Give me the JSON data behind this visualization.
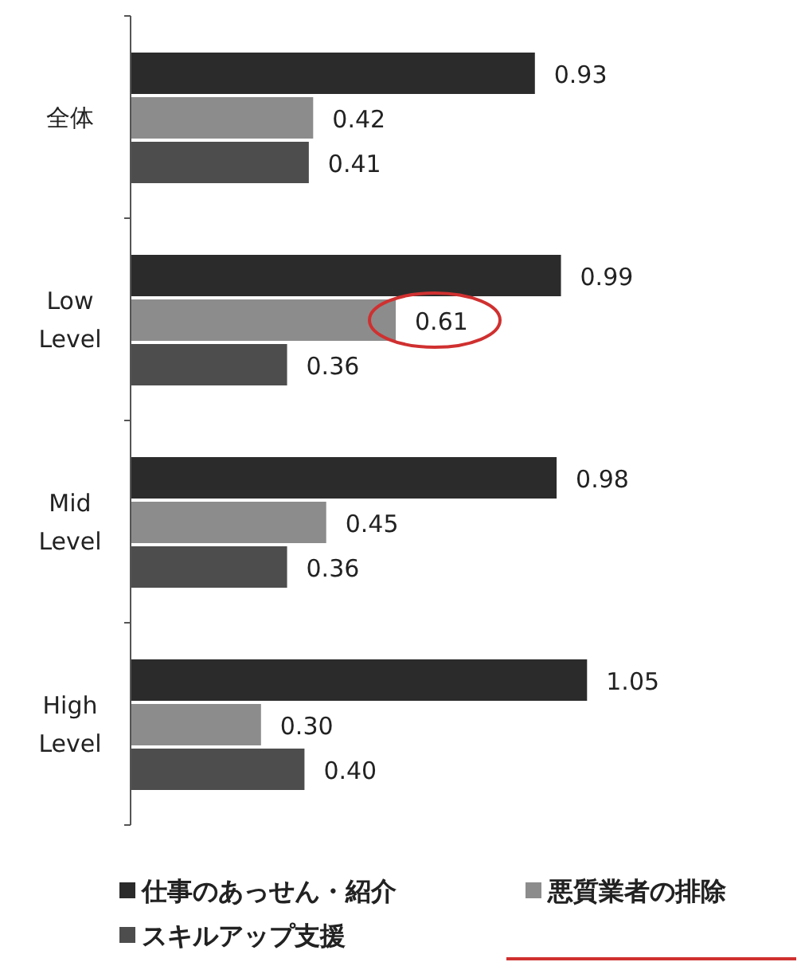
{
  "chart_data": {
    "type": "bar",
    "orientation": "horizontal",
    "categories": [
      "全体",
      "Low\nLevel",
      "Mid\nLevel",
      "High\nLevel"
    ],
    "series": [
      {
        "name": "仕事のあっせん・紹介",
        "color": "#2b2b2b",
        "values": [
          0.93,
          0.99,
          0.98,
          1.05
        ],
        "value_labels": [
          "0.93",
          "0.99",
          "0.98",
          "1.05"
        ]
      },
      {
        "name": "悪質業者の排除",
        "color": "#8c8c8c",
        "values": [
          0.42,
          0.61,
          0.45,
          0.3
        ],
        "value_labels": [
          "0.42",
          "0.61",
          "0.45",
          "0.30"
        ]
      },
      {
        "name": "スキルアップ支援",
        "color": "#4d4d4d",
        "values": [
          0.41,
          0.36,
          0.36,
          0.4
        ],
        "value_labels": [
          "0.41",
          "0.36",
          "0.36",
          "0.40"
        ]
      }
    ],
    "legend": "bottom"
  }
}
